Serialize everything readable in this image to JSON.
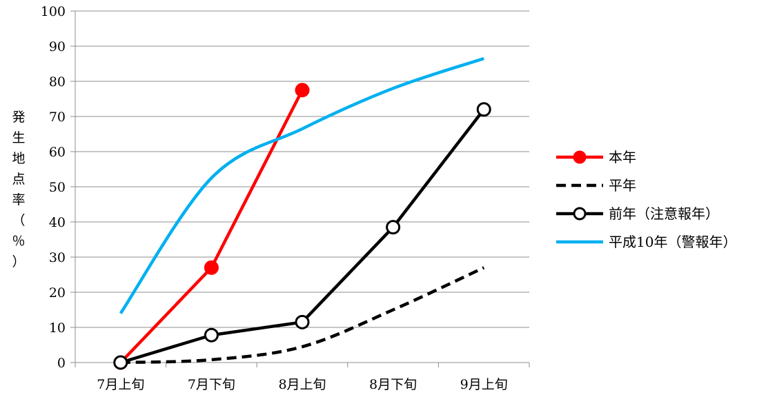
{
  "chart_data": {
    "type": "line",
    "title": "",
    "xlabel": "",
    "ylabel": "発生地点率（％）",
    "ylim": [
      0,
      100
    ],
    "yticks": [
      0,
      10,
      20,
      30,
      40,
      50,
      60,
      70,
      80,
      90,
      100
    ],
    "categories": [
      "7月上旬",
      "7月下旬",
      "8月上旬",
      "8月下旬",
      "9月上旬"
    ],
    "grid": true,
    "legend_position": "right",
    "series": [
      {
        "name": "本年",
        "values": [
          0,
          27,
          77.5,
          null,
          null
        ],
        "color": "#ff0000",
        "dash": "solid",
        "marker": "filled-circle"
      },
      {
        "name": "平年",
        "values": [
          0,
          0.8,
          4.5,
          15,
          27
        ],
        "color": "#000000",
        "dash": "dashed",
        "marker": "none"
      },
      {
        "name": "前年（注意報年）",
        "values": [
          0,
          7.8,
          11.5,
          38.5,
          72
        ],
        "color": "#000000",
        "dash": "solid",
        "marker": "open-circle"
      },
      {
        "name": "平成10年（警報年）",
        "values": [
          14,
          52.5,
          66.5,
          78,
          86.5
        ],
        "color": "#00b0f0",
        "dash": "solid",
        "marker": "none"
      }
    ]
  }
}
